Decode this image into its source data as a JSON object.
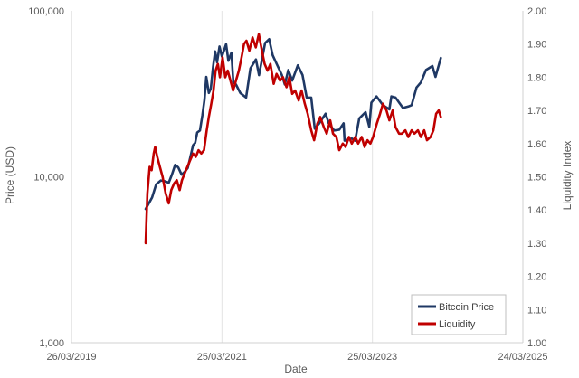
{
  "chart_data": {
    "type": "line",
    "xlabel": "Date",
    "ylabel_left": "Price (USD)",
    "ylabel_right": "Liquidity Index",
    "x_ticks": [
      "26/03/2019",
      "25/03/2021",
      "25/03/2023",
      "24/03/2025"
    ],
    "x_range": [
      "2019-03-26",
      "2025-03-24"
    ],
    "y_left_scale": "log",
    "y_left_range": [
      1000,
      100000
    ],
    "y_left_ticks": [
      "1,000",
      "10,000",
      "100,000"
    ],
    "y_right_range": [
      1.0,
      2.0
    ],
    "y_right_ticks": [
      "1.00",
      "1.10",
      "1.20",
      "1.30",
      "1.40",
      "1.50",
      "1.60",
      "1.70",
      "1.80",
      "1.90",
      "2.00"
    ],
    "grid": "vertical",
    "legend_position": "bottom-right",
    "series": [
      {
        "name": "Bitcoin Price",
        "axis": "left",
        "color": "#1f3864",
        "points": [
          [
            "2020-03-20",
            6400
          ],
          [
            "2020-04-01",
            6800
          ],
          [
            "2020-04-20",
            7500
          ],
          [
            "2020-05-10",
            9000
          ],
          [
            "2020-06-01",
            9500
          ],
          [
            "2020-06-20",
            9400
          ],
          [
            "2020-07-10",
            9200
          ],
          [
            "2020-07-25",
            10300
          ],
          [
            "2020-08-10",
            11800
          ],
          [
            "2020-08-25",
            11400
          ],
          [
            "2020-09-10",
            10300
          ],
          [
            "2020-09-25",
            10700
          ],
          [
            "2020-10-10",
            11300
          ],
          [
            "2020-10-22",
            13000
          ],
          [
            "2020-11-05",
            15500
          ],
          [
            "2020-11-15",
            16000
          ],
          [
            "2020-11-25",
            18500
          ],
          [
            "2020-12-08",
            19000
          ],
          [
            "2020-12-20",
            23500
          ],
          [
            "2020-12-30",
            29000
          ],
          [
            "2021-01-08",
            40000
          ],
          [
            "2021-01-20",
            32000
          ],
          [
            "2021-01-30",
            34000
          ],
          [
            "2021-02-10",
            46000
          ],
          [
            "2021-02-20",
            57000
          ],
          [
            "2021-03-01",
            49000
          ],
          [
            "2021-03-13",
            61000
          ],
          [
            "2021-03-25",
            53000
          ],
          [
            "2021-04-14",
            63000
          ],
          [
            "2021-04-25",
            50000
          ],
          [
            "2021-05-10",
            56000
          ],
          [
            "2021-05-19",
            37000
          ],
          [
            "2021-06-01",
            36000
          ],
          [
            "2021-06-22",
            32000
          ],
          [
            "2021-07-20",
            30000
          ],
          [
            "2021-08-10",
            45000
          ],
          [
            "2021-09-06",
            51000
          ],
          [
            "2021-09-21",
            41000
          ],
          [
            "2021-10-20",
            64000
          ],
          [
            "2021-11-09",
            67500
          ],
          [
            "2021-11-26",
            54000
          ],
          [
            "2021-12-20",
            46500
          ],
          [
            "2022-01-10",
            41000
          ],
          [
            "2022-01-24",
            36000
          ],
          [
            "2022-02-10",
            44000
          ],
          [
            "2022-03-01",
            38000
          ],
          [
            "2022-03-28",
            47000
          ],
          [
            "2022-04-20",
            41000
          ],
          [
            "2022-05-10",
            30000
          ],
          [
            "2022-06-01",
            30000
          ],
          [
            "2022-06-18",
            19500
          ],
          [
            "2022-07-10",
            21000
          ],
          [
            "2022-08-10",
            24000
          ],
          [
            "2022-08-25",
            21000
          ],
          [
            "2022-09-20",
            19000
          ],
          [
            "2022-10-15",
            19200
          ],
          [
            "2022-11-05",
            21000
          ],
          [
            "2022-11-10",
            16500
          ],
          [
            "2022-12-15",
            17000
          ],
          [
            "2022-12-31",
            16500
          ],
          [
            "2023-01-20",
            22500
          ],
          [
            "2023-02-20",
            24500
          ],
          [
            "2023-03-10",
            20000
          ],
          [
            "2023-03-20",
            28000
          ],
          [
            "2023-04-14",
            30500
          ],
          [
            "2023-05-15",
            27000
          ],
          [
            "2023-06-15",
            25500
          ],
          [
            "2023-06-25",
            30500
          ],
          [
            "2023-07-15",
            30000
          ],
          [
            "2023-08-20",
            26000
          ],
          [
            "2023-09-15",
            26500
          ],
          [
            "2023-10-01",
            27000
          ],
          [
            "2023-10-25",
            34500
          ],
          [
            "2023-11-15",
            37000
          ],
          [
            "2023-12-10",
            44000
          ],
          [
            "2024-01-10",
            46500
          ],
          [
            "2024-01-25",
            40000
          ],
          [
            "2024-02-10",
            47000
          ],
          [
            "2024-02-20",
            52000
          ]
        ]
      },
      {
        "name": "Liquidity",
        "axis": "right",
        "color": "#c00000",
        "points": [
          [
            "2020-03-20",
            1.3
          ],
          [
            "2020-03-28",
            1.45
          ],
          [
            "2020-04-08",
            1.53
          ],
          [
            "2020-04-18",
            1.52
          ],
          [
            "2020-04-28",
            1.57
          ],
          [
            "2020-05-05",
            1.59
          ],
          [
            "2020-05-15",
            1.56
          ],
          [
            "2020-05-28",
            1.53
          ],
          [
            "2020-06-10",
            1.5
          ],
          [
            "2020-06-25",
            1.45
          ],
          [
            "2020-07-10",
            1.42
          ],
          [
            "2020-07-22",
            1.46
          ],
          [
            "2020-08-05",
            1.48
          ],
          [
            "2020-08-18",
            1.49
          ],
          [
            "2020-09-01",
            1.46
          ],
          [
            "2020-09-12",
            1.49
          ],
          [
            "2020-09-25",
            1.51
          ],
          [
            "2020-10-08",
            1.53
          ],
          [
            "2020-10-22",
            1.55
          ],
          [
            "2020-11-05",
            1.57
          ],
          [
            "2020-11-18",
            1.56
          ],
          [
            "2020-12-01",
            1.58
          ],
          [
            "2020-12-15",
            1.57
          ],
          [
            "2020-12-28",
            1.58
          ],
          [
            "2021-01-10",
            1.64
          ],
          [
            "2021-01-20",
            1.68
          ],
          [
            "2021-02-01",
            1.72
          ],
          [
            "2021-02-12",
            1.76
          ],
          [
            "2021-02-22",
            1.82
          ],
          [
            "2021-03-05",
            1.84
          ],
          [
            "2021-03-15",
            1.8
          ],
          [
            "2021-03-28",
            1.86
          ],
          [
            "2021-04-10",
            1.8
          ],
          [
            "2021-04-22",
            1.82
          ],
          [
            "2021-05-05",
            1.79
          ],
          [
            "2021-05-18",
            1.76
          ],
          [
            "2021-06-01",
            1.79
          ],
          [
            "2021-06-15",
            1.82
          ],
          [
            "2021-06-28",
            1.86
          ],
          [
            "2021-07-10",
            1.9
          ],
          [
            "2021-07-22",
            1.91
          ],
          [
            "2021-08-05",
            1.88
          ],
          [
            "2021-08-20",
            1.92
          ],
          [
            "2021-09-05",
            1.89
          ],
          [
            "2021-09-20",
            1.93
          ],
          [
            "2021-10-05",
            1.88
          ],
          [
            "2021-10-18",
            1.84
          ],
          [
            "2021-11-01",
            1.82
          ],
          [
            "2021-11-15",
            1.84
          ],
          [
            "2021-12-01",
            1.78
          ],
          [
            "2021-12-15",
            1.81
          ],
          [
            "2022-01-01",
            1.79
          ],
          [
            "2022-01-15",
            1.8
          ],
          [
            "2022-02-01",
            1.77
          ],
          [
            "2022-02-15",
            1.8
          ],
          [
            "2022-03-01",
            1.75
          ],
          [
            "2022-03-15",
            1.76
          ],
          [
            "2022-04-01",
            1.73
          ],
          [
            "2022-04-15",
            1.76
          ],
          [
            "2022-05-01",
            1.72
          ],
          [
            "2022-05-15",
            1.69
          ],
          [
            "2022-06-01",
            1.64
          ],
          [
            "2022-06-15",
            1.61
          ],
          [
            "2022-07-01",
            1.66
          ],
          [
            "2022-07-15",
            1.68
          ],
          [
            "2022-08-01",
            1.65
          ],
          [
            "2022-08-15",
            1.63
          ],
          [
            "2022-09-01",
            1.67
          ],
          [
            "2022-09-15",
            1.63
          ],
          [
            "2022-10-01",
            1.62
          ],
          [
            "2022-10-15",
            1.58
          ],
          [
            "2022-11-01",
            1.6
          ],
          [
            "2022-11-15",
            1.59
          ],
          [
            "2022-12-01",
            1.62
          ],
          [
            "2022-12-15",
            1.6
          ],
          [
            "2023-01-01",
            1.62
          ],
          [
            "2023-01-15",
            1.6
          ],
          [
            "2023-02-01",
            1.62
          ],
          [
            "2023-02-15",
            1.59
          ],
          [
            "2023-03-01",
            1.61
          ],
          [
            "2023-03-15",
            1.6
          ],
          [
            "2023-03-28",
            1.62
          ],
          [
            "2023-04-15",
            1.66
          ],
          [
            "2023-05-01",
            1.69
          ],
          [
            "2023-05-15",
            1.72
          ],
          [
            "2023-06-01",
            1.7
          ],
          [
            "2023-06-15",
            1.67
          ],
          [
            "2023-07-01",
            1.7
          ],
          [
            "2023-07-15",
            1.65
          ],
          [
            "2023-08-01",
            1.63
          ],
          [
            "2023-08-15",
            1.63
          ],
          [
            "2023-09-01",
            1.64
          ],
          [
            "2023-09-15",
            1.62
          ],
          [
            "2023-10-01",
            1.64
          ],
          [
            "2023-10-15",
            1.63
          ],
          [
            "2023-11-01",
            1.64
          ],
          [
            "2023-11-15",
            1.62
          ],
          [
            "2023-12-01",
            1.64
          ],
          [
            "2023-12-15",
            1.61
          ],
          [
            "2024-01-01",
            1.62
          ],
          [
            "2024-01-15",
            1.64
          ],
          [
            "2024-01-28",
            1.69
          ],
          [
            "2024-02-10",
            1.7
          ],
          [
            "2024-02-20",
            1.68
          ]
        ]
      }
    ]
  }
}
